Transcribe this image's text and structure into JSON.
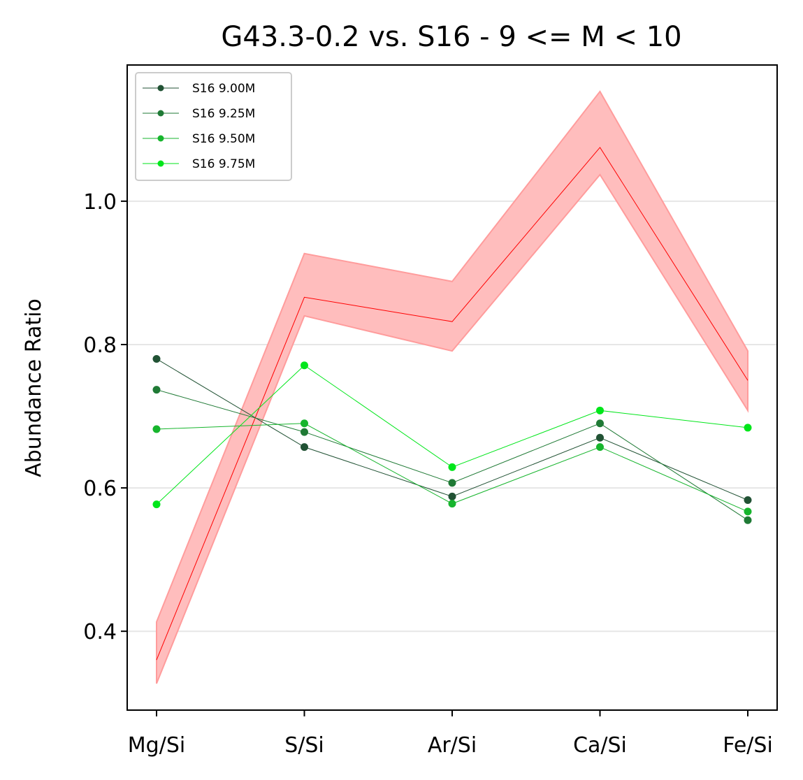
{
  "chart_data": {
    "type": "line",
    "title": "G43.3-0.2 vs. S16 - 9 <= M < 10",
    "xlabel": "",
    "ylabel": "Abundance Ratio",
    "categories": [
      "Mg/Si",
      "S/Si",
      "Ar/Si",
      "Ca/Si",
      "Fe/Si"
    ],
    "ylim": [
      0.29,
      1.19
    ],
    "yticks": [
      0.4,
      0.6,
      0.8,
      1.0
    ],
    "ytick_labels": [
      "0.4",
      "0.6",
      "0.8",
      "1.0"
    ],
    "grid": "horizontal",
    "legend_position": "top-left",
    "observed": {
      "color": "#ff0000",
      "band_color": "#ffbdbd",
      "values": [
        0.36,
        0.866,
        0.832,
        1.075,
        0.75
      ],
      "lower": [
        0.327,
        0.84,
        0.791,
        1.037,
        0.708
      ],
      "upper": [
        0.413,
        0.927,
        0.888,
        1.153,
        0.791
      ]
    },
    "series": [
      {
        "name": "S16 9.00M",
        "color": "#215234",
        "values": [
          0.78,
          0.657,
          0.588,
          0.67,
          0.583
        ]
      },
      {
        "name": "S16 9.25M",
        "color": "#1f7a35",
        "values": [
          0.737,
          0.678,
          0.607,
          0.69,
          0.555
        ]
      },
      {
        "name": "S16 9.50M",
        "color": "#17b52d",
        "values": [
          0.682,
          0.69,
          0.578,
          0.657,
          0.567
        ]
      },
      {
        "name": "S16 9.75M",
        "color": "#00e61a",
        "values": [
          0.577,
          0.771,
          0.629,
          0.708,
          0.684
        ]
      }
    ]
  }
}
